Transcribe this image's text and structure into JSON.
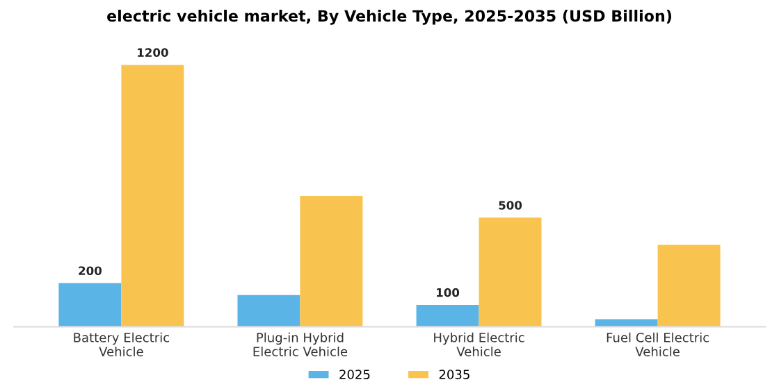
{
  "chart_data": {
    "type": "bar",
    "title": "electric vehicle market, By Vehicle Type, 2025-2035 (USD Billion)",
    "categories": [
      "Battery Electric\nVehicle",
      "Plug-in Hybrid\nElectric Vehicle",
      "Hybrid Electric\nVehicle",
      "Fuel Cell Electric\nVehicle"
    ],
    "series": [
      {
        "name": "2025",
        "color": "#5ab4e5",
        "values": [
          200,
          145,
          100,
          35
        ],
        "value_labels": [
          "200",
          null,
          "100",
          null
        ]
      },
      {
        "name": "2035",
        "color": "#f9c34f",
        "values": [
          1200,
          600,
          500,
          375
        ],
        "value_labels": [
          "1200",
          null,
          "500",
          null
        ]
      }
    ],
    "legend": "bottom",
    "grid": false,
    "tick_labels": "x"
  }
}
